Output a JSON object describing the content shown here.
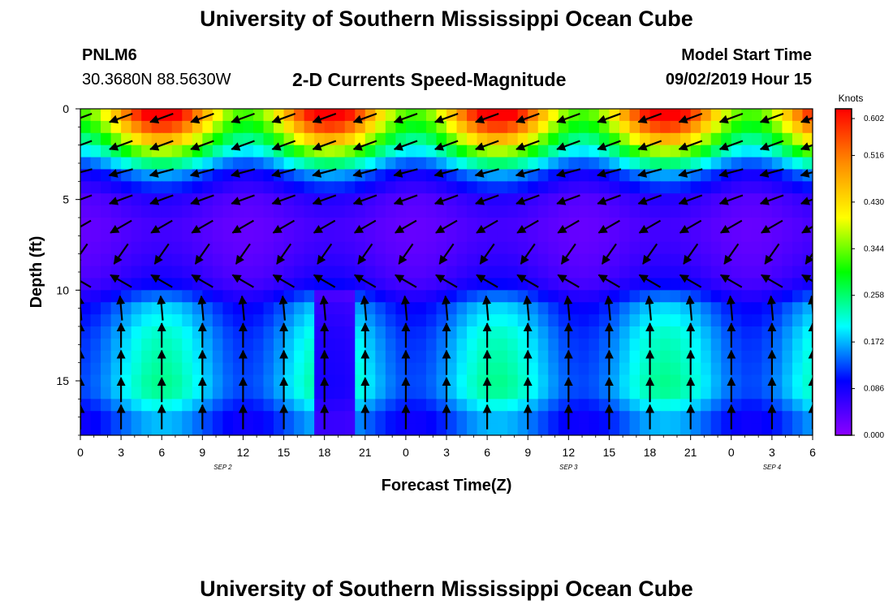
{
  "page": {
    "title": "University of Southern Mississippi Ocean Cube",
    "footer_title": "University of Southern Mississippi Ocean Cube",
    "station_id": "PNLM6",
    "station_coords": "30.3680N 88.5630W",
    "plot_title": "2-D Currents Speed-Magnitude",
    "model_start_label": "Model Start Time",
    "model_start_value": "09/02/2019 Hour 15"
  },
  "chart_data": {
    "type": "heatmap",
    "title": "2-D Currents Speed-Magnitude",
    "xlabel": "Forecast Time(Z)",
    "ylabel": "Depth (ft)",
    "x_start": 0,
    "x_end": 54,
    "x_step_hours": 3,
    "x_ticks": [
      "0",
      "3",
      "6",
      "9",
      "12",
      "15",
      "18",
      "21",
      "0",
      "3",
      "6",
      "9",
      "12",
      "15",
      "18",
      "21",
      "0",
      "3",
      "6"
    ],
    "day_labels": [
      {
        "label": "SEP 2",
        "hour": 10.5
      },
      {
        "label": "SEP 3",
        "hour": 36.0
      },
      {
        "label": "SEP 4",
        "hour": 51.0
      }
    ],
    "y_range": [
      0,
      18
    ],
    "y_ticks": [
      "0",
      "5",
      "10",
      "15"
    ],
    "colorbar": {
      "unit": "Knots",
      "min": 0.0,
      "max": 0.602,
      "ticks": [
        "0.602",
        "0.516",
        "0.430",
        "0.344",
        "0.258",
        "0.172",
        "0.086",
        "0.000"
      ],
      "colors": [
        "#8c00ff",
        "#0000ff",
        "#00ffff",
        "#00ff00",
        "#ffff00",
        "#ff8c00",
        "#ff0000"
      ]
    },
    "depth_rows": [
      0.5,
      2.0,
      3.5,
      5.0,
      6.5,
      8.0,
      9.5,
      11.0,
      12.5,
      14.0,
      15.5,
      17.0
    ],
    "speed_profile_knots": [
      0.5,
      0.34,
      0.14,
      0.06,
      0.04,
      0.05,
      0.07,
      0.15,
      0.18,
      0.19,
      0.2,
      0.14
    ],
    "arrow_angles_deg": [
      200,
      200,
      195,
      200,
      210,
      235,
      150,
      95,
      90,
      90,
      90,
      90
    ]
  }
}
